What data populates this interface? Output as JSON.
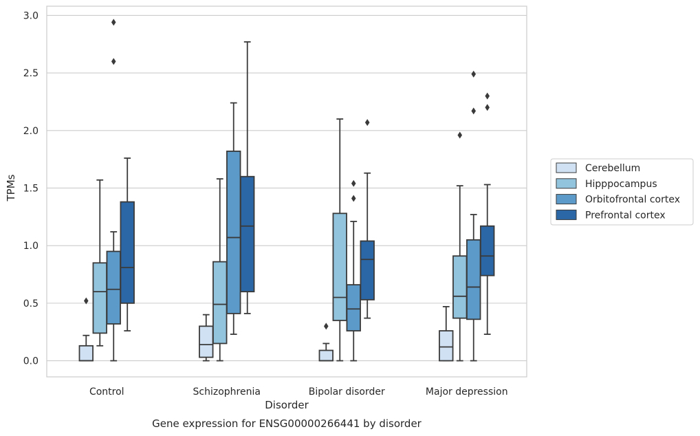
{
  "chart_data": {
    "type": "box",
    "xlabel": "Disorder",
    "ylabel": "TPMs",
    "caption": "Gene expression for ENSG00000266441 by disorder",
    "ylim": [
      -0.14,
      3.08
    ],
    "yticks": [
      "0.0",
      "0.5",
      "1.0",
      "1.5",
      "2.0",
      "2.5",
      "3.0"
    ],
    "grid": true,
    "legend_position": "right",
    "categories": [
      "Control",
      "Schizophrenia",
      "Bipolar disorder",
      "Major depression"
    ],
    "series": [
      {
        "name": "Cerebellum",
        "color": "#cfe1f2",
        "boxes": [
          {
            "whislo": 0.0,
            "q1": 0.0,
            "med": 0.0,
            "q3": 0.13,
            "whishi": 0.22,
            "fliers": [
              0.52
            ]
          },
          {
            "whislo": 0.0,
            "q1": 0.03,
            "med": 0.14,
            "q3": 0.3,
            "whishi": 0.4,
            "fliers": []
          },
          {
            "whislo": 0.0,
            "q1": 0.0,
            "med": 0.0,
            "q3": 0.09,
            "whishi": 0.15,
            "fliers": [
              0.3
            ]
          },
          {
            "whislo": 0.0,
            "q1": 0.0,
            "med": 0.12,
            "q3": 0.26,
            "whishi": 0.47,
            "fliers": []
          }
        ]
      },
      {
        "name": "Hipppocampus",
        "color": "#93c4de",
        "boxes": [
          {
            "whislo": 0.13,
            "q1": 0.24,
            "med": 0.6,
            "q3": 0.85,
            "whishi": 1.57,
            "fliers": []
          },
          {
            "whislo": 0.0,
            "q1": 0.15,
            "med": 0.49,
            "q3": 0.86,
            "whishi": 1.58,
            "fliers": []
          },
          {
            "whislo": 0.0,
            "q1": 0.35,
            "med": 0.55,
            "q3": 1.28,
            "whishi": 2.1,
            "fliers": []
          },
          {
            "whislo": 0.0,
            "q1": 0.37,
            "med": 0.56,
            "q3": 0.91,
            "whishi": 1.52,
            "fliers": [
              1.96
            ]
          }
        ]
      },
      {
        "name": "Orbitofrontal cortex",
        "color": "#5c9bc9",
        "boxes": [
          {
            "whislo": 0.0,
            "q1": 0.32,
            "med": 0.62,
            "q3": 0.95,
            "whishi": 1.12,
            "fliers": [
              2.6,
              2.94
            ]
          },
          {
            "whislo": 0.23,
            "q1": 0.41,
            "med": 1.07,
            "q3": 1.82,
            "whishi": 2.24,
            "fliers": []
          },
          {
            "whislo": 0.0,
            "q1": 0.26,
            "med": 0.45,
            "q3": 0.66,
            "whishi": 1.21,
            "fliers": [
              1.41,
              1.54
            ]
          },
          {
            "whislo": 0.0,
            "q1": 0.36,
            "med": 0.64,
            "q3": 1.05,
            "whishi": 1.27,
            "fliers": [
              2.17,
              2.49
            ]
          }
        ]
      },
      {
        "name": "Prefrontal cortex",
        "color": "#2b67a6",
        "boxes": [
          {
            "whislo": 0.26,
            "q1": 0.5,
            "med": 0.81,
            "q3": 1.38,
            "whishi": 1.76,
            "fliers": []
          },
          {
            "whislo": 0.41,
            "q1": 0.6,
            "med": 1.17,
            "q3": 1.6,
            "whishi": 2.77,
            "fliers": []
          },
          {
            "whislo": 0.37,
            "q1": 0.53,
            "med": 0.88,
            "q3": 1.04,
            "whishi": 1.63,
            "fliers": [
              2.07
            ]
          },
          {
            "whislo": 0.23,
            "q1": 0.74,
            "med": 0.91,
            "q3": 1.17,
            "whishi": 1.53,
            "fliers": [
              2.2,
              2.3
            ]
          }
        ]
      }
    ]
  }
}
